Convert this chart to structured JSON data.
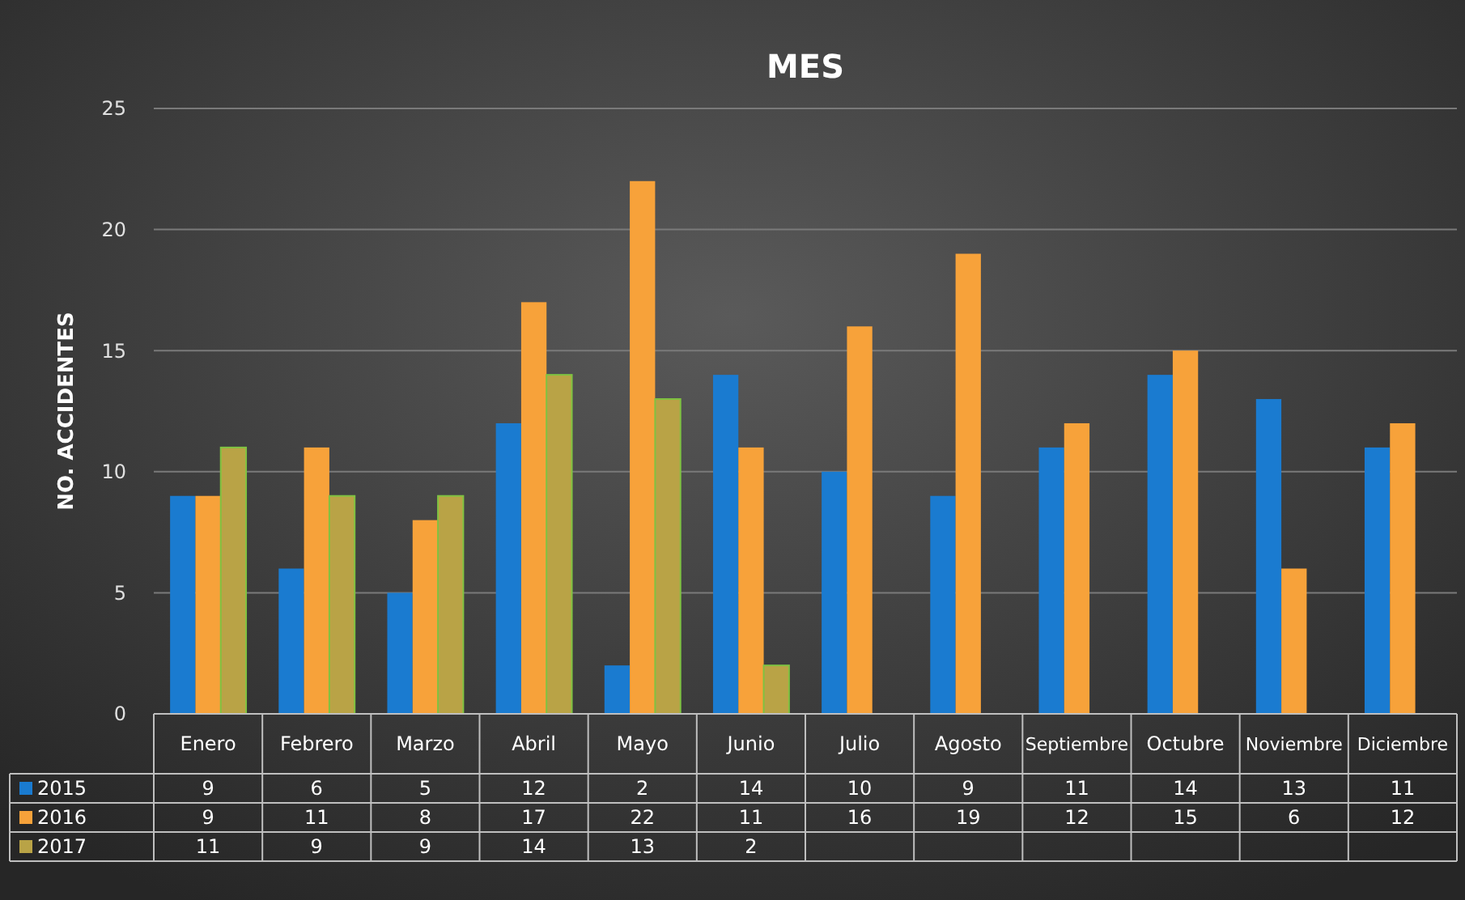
{
  "chart_data": {
    "type": "bar",
    "title": "MES",
    "ylabel": "NO. ACCIDENTES",
    "categories": [
      "Enero",
      "Febrero",
      "Marzo",
      "Abril",
      "Mayo",
      "Junio",
      "Julio",
      "Agosto",
      "Septiembre",
      "Octubre",
      "Noviembre",
      "Diciembre"
    ],
    "series": [
      {
        "name": "2015",
        "color": "#1a7bd0",
        "values": [
          9,
          6,
          5,
          12,
          2,
          14,
          10,
          9,
          11,
          14,
          13,
          11
        ]
      },
      {
        "name": "2016",
        "color": "#f7a23a",
        "values": [
          9,
          11,
          8,
          17,
          22,
          11,
          16,
          19,
          12,
          15,
          6,
          12
        ]
      },
      {
        "name": "2017",
        "color": "#b9a346",
        "values": [
          11,
          9,
          9,
          14,
          13,
          2,
          null,
          null,
          null,
          null,
          null,
          null
        ]
      }
    ],
    "ylim": [
      0,
      25
    ],
    "yticks": [
      0,
      5,
      10,
      15,
      20,
      25
    ],
    "grid": "y",
    "data_labels": true,
    "legend": "bottom left"
  }
}
